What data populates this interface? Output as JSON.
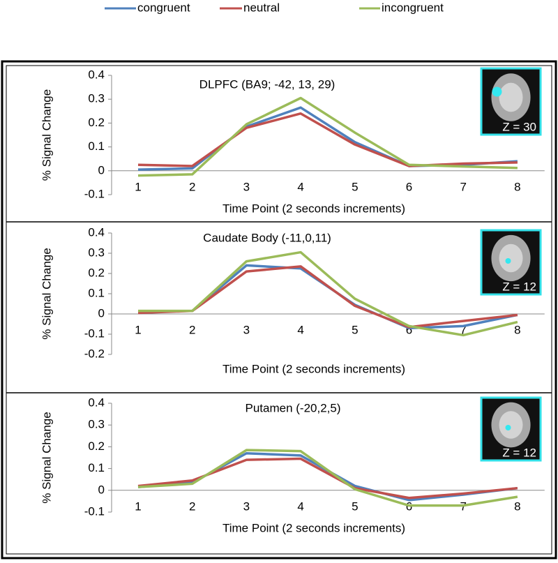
{
  "chart_data": [
    {
      "type": "line",
      "title": "DLPFC (BA9; -42, 13, 29)",
      "x_label": "Time Point (2 seconds increments)",
      "y_label": "% Signal Change",
      "inset_label": "Z = 30",
      "categories": [
        "1",
        "2",
        "3",
        "4",
        "5",
        "6",
        "7",
        "8"
      ],
      "ylim": [
        -0.1,
        0.4
      ],
      "yticks": [
        -0.1,
        0,
        0.1,
        0.2,
        0.3,
        0.4
      ],
      "series": [
        {
          "name": "congruent",
          "color": "#4f81bd",
          "values": [
            0.005,
            0.01,
            0.185,
            0.265,
            0.12,
            0.02,
            0.025,
            0.04
          ]
        },
        {
          "name": "neutral",
          "color": "#c0504d",
          "values": [
            0.025,
            0.02,
            0.18,
            0.24,
            0.11,
            0.02,
            0.03,
            0.035
          ]
        },
        {
          "name": "incongruent",
          "color": "#9bbb59",
          "values": [
            -0.02,
            -0.015,
            0.195,
            0.305,
            0.16,
            0.025,
            0.018,
            0.012
          ]
        }
      ]
    },
    {
      "type": "line",
      "title": "Caudate Body (-11,0,11)",
      "x_label": "Time Point (2 seconds increments)",
      "y_label": "% Signal Change",
      "inset_label": "Z = 12",
      "categories": [
        "1",
        "2",
        "3",
        "4",
        "5",
        "6",
        "7",
        "8"
      ],
      "ylim": [
        -0.2,
        0.4
      ],
      "yticks": [
        -0.2,
        -0.1,
        0,
        0.1,
        0.2,
        0.3,
        0.4
      ],
      "series": [
        {
          "color": "#4f81bd",
          "values": [
            0.01,
            0.015,
            0.24,
            0.225,
            0.045,
            -0.07,
            -0.06,
            -0.005
          ]
        },
        {
          "color": "#c0504d",
          "values": [
            0.005,
            0.015,
            0.21,
            0.235,
            0.04,
            -0.065,
            -0.035,
            -0.005
          ]
        },
        {
          "color": "#9bbb59",
          "values": [
            0.015,
            0.015,
            0.26,
            0.305,
            0.075,
            -0.06,
            -0.105,
            -0.04
          ]
        }
      ]
    },
    {
      "type": "line",
      "title": "Putamen (-20,2,5)",
      "x_label": "Time Point (2 seconds increments)",
      "y_label": "% Signal Change",
      "inset_label": "Z = 12",
      "categories": [
        "1",
        "2",
        "3",
        "4",
        "5",
        "6",
        "7",
        "8"
      ],
      "ylim": [
        -0.1,
        0.4
      ],
      "yticks": [
        -0.1,
        0,
        0.1,
        0.2,
        0.3,
        0.4
      ],
      "series": [
        {
          "color": "#4f81bd",
          "values": [
            0.015,
            0.035,
            0.17,
            0.16,
            0.02,
            -0.045,
            -0.02,
            0.01
          ]
        },
        {
          "color": "#c0504d",
          "values": [
            0.02,
            0.045,
            0.14,
            0.145,
            0.01,
            -0.035,
            -0.015,
            0.01
          ]
        },
        {
          "color": "#9bbb59",
          "values": [
            0.015,
            0.03,
            0.185,
            0.18,
            0.005,
            -0.07,
            -0.07,
            -0.03
          ]
        }
      ]
    }
  ]
}
